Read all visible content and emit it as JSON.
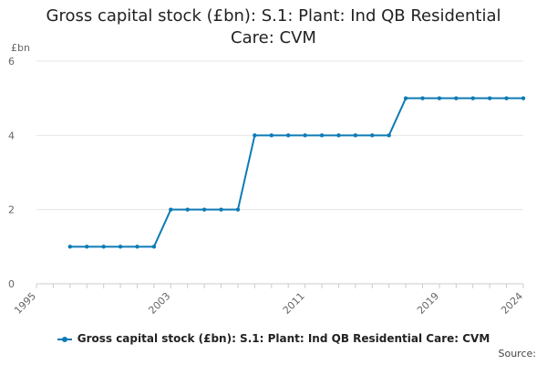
{
  "chart_data": {
    "type": "line",
    "title_lines": [
      "Gross capital stock (£bn): S.1: Plant: Ind QB Residential",
      "Care: CVM"
    ],
    "ylabel": "£bn",
    "xlabel": "",
    "xlim": [
      1995,
      2024
    ],
    "ylim": [
      0,
      6
    ],
    "y_ticks": [
      0,
      2,
      4,
      6
    ],
    "x_ticks": [
      1995,
      2003,
      2011,
      2019,
      2024
    ],
    "grid": true,
    "legend_position": "bottom",
    "color": "#0e7bb6",
    "series": [
      {
        "name": "Gross capital stock (£bn): S.1: Plant: Ind QB Residential Care: CVM",
        "x": [
          1997,
          1998,
          1999,
          2000,
          2001,
          2002,
          2003,
          2004,
          2005,
          2006,
          2007,
          2008,
          2009,
          2010,
          2011,
          2012,
          2013,
          2014,
          2015,
          2016,
          2017,
          2018,
          2019,
          2020,
          2021,
          2022,
          2023,
          2024
        ],
        "values": [
          1,
          1,
          1,
          1,
          1,
          1,
          2,
          2,
          2,
          2,
          2,
          4,
          4,
          4,
          4,
          4,
          4,
          4,
          4,
          4,
          5,
          5,
          5,
          5,
          5,
          5,
          5,
          5
        ]
      }
    ]
  },
  "source_label": "Source:"
}
